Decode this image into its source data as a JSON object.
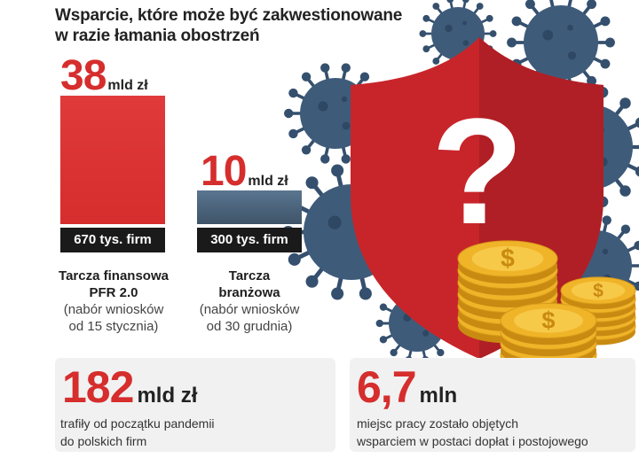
{
  "title_line1": "Wsparcie, które może być zakwestionowane",
  "title_line2": "w razie łamania obostrzeń",
  "chart_data": {
    "type": "bar",
    "unit": "mld zł",
    "categories": [
      {
        "name_line1": "Tarcza finansowa",
        "name_line2": "PFR 2.0",
        "note_line1": "(nabór wniosków",
        "note_line2": "od 15 stycznia)"
      },
      {
        "name_line1": "Tarcza",
        "name_line2": "branżowa",
        "note_line1": "(nabór wniosków",
        "note_line2": "od 30 grudnia)"
      }
    ],
    "values": [
      38,
      10
    ],
    "value_labels": [
      "38",
      "10"
    ],
    "firm_labels": [
      "670 tys. firm",
      "300 tys. firm"
    ],
    "bar_colors": [
      "#d62d2d",
      "#3e5468"
    ]
  },
  "stats": [
    {
      "value": "182",
      "unit": "mld zł",
      "desc_line1": "trafiły od początku pandemii",
      "desc_line2": "do polskich firm"
    },
    {
      "value": "6,7",
      "unit": "mln",
      "desc_line1": "miejsc pracy zostało objętych",
      "desc_line2": "wsparciem w postaci dopłat i postojowego"
    }
  ],
  "illustration": {
    "icons": [
      "virus-icon",
      "shield-icon",
      "question-mark-icon",
      "coin-stack-icon"
    ],
    "shield_mark": "?",
    "coin_symbol": "$",
    "colors": {
      "shield": "#c8252a",
      "virus": "#3f5b7a",
      "coin": "#f0b429"
    }
  }
}
